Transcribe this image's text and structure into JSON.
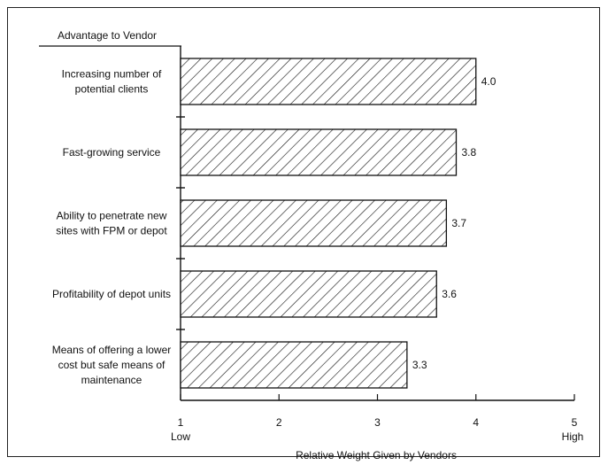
{
  "chart_data": {
    "type": "bar",
    "orientation": "horizontal",
    "category_header": "Advantage to Vendor",
    "categories": [
      [
        "Increasing number of",
        "potential clients"
      ],
      [
        "Fast-growing service"
      ],
      [
        "Ability to penetrate new",
        "sites with FPM or depot"
      ],
      [
        "Profitability of depot units"
      ],
      [
        "Means of offering a lower",
        "cost but safe means of",
        "maintenance"
      ]
    ],
    "values": [
      4.0,
      3.8,
      3.7,
      3.6,
      3.3
    ],
    "value_labels": [
      "4.0",
      "3.8",
      "3.7",
      "3.6",
      "3.3"
    ],
    "xlabel": "Relative Weight Given by Vendors",
    "xlim": [
      1,
      5
    ],
    "xticks": [
      "1",
      "2",
      "3",
      "4",
      "5"
    ],
    "x_end_labels": {
      "low": "Low",
      "high": "High"
    },
    "bar_fill": "diagonal hatch",
    "grid": false
  }
}
